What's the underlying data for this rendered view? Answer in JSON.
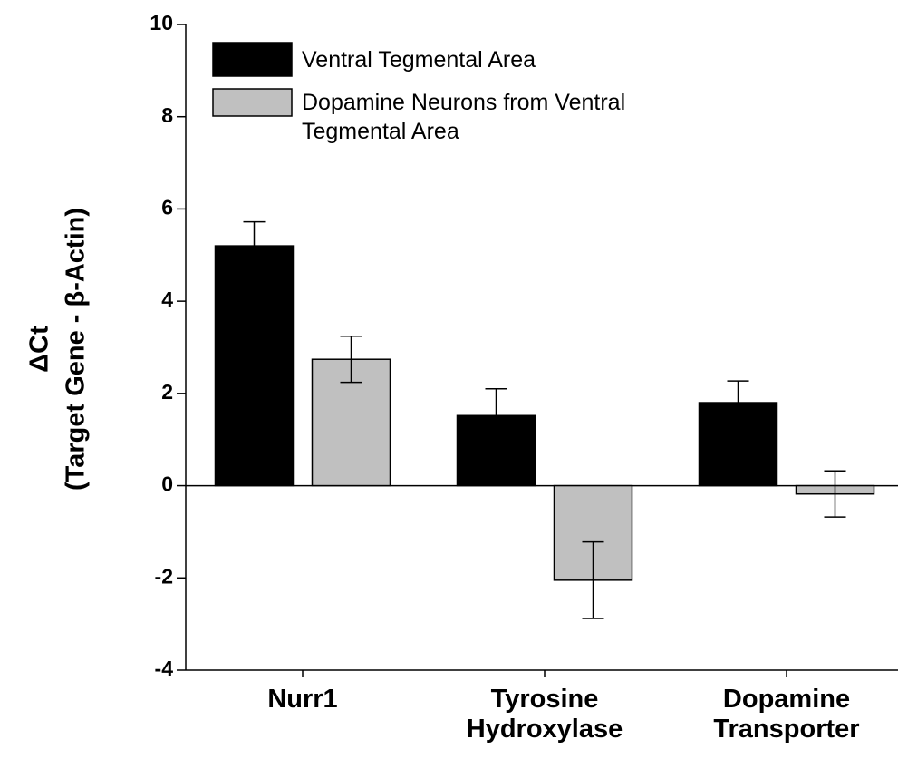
{
  "chart_data": {
    "type": "bar",
    "ylabel": [
      "ΔCt",
      "(Target Gene - β-Actin)"
    ],
    "categories": [
      "Nurr1",
      "Tyrosine Hydroxylase",
      "Dopamine Transporter"
    ],
    "series": [
      {
        "name": "Ventral Tegmental Area",
        "color": "#000000",
        "values": [
          5.2,
          1.52,
          1.8
        ],
        "errors": [
          0.52,
          0.58,
          0.47
        ]
      },
      {
        "name": "Dopamine Neurons from Ventral Tegmental Area",
        "color": "#c0c0c0",
        "values": [
          2.74,
          -2.05,
          -0.18
        ],
        "errors": [
          0.5,
          0.83,
          0.5
        ]
      }
    ],
    "ylim": [
      -4,
      10
    ],
    "yticks": [
      -4,
      -2,
      0,
      2,
      4,
      6,
      8,
      10
    ],
    "legend": "upper left"
  }
}
